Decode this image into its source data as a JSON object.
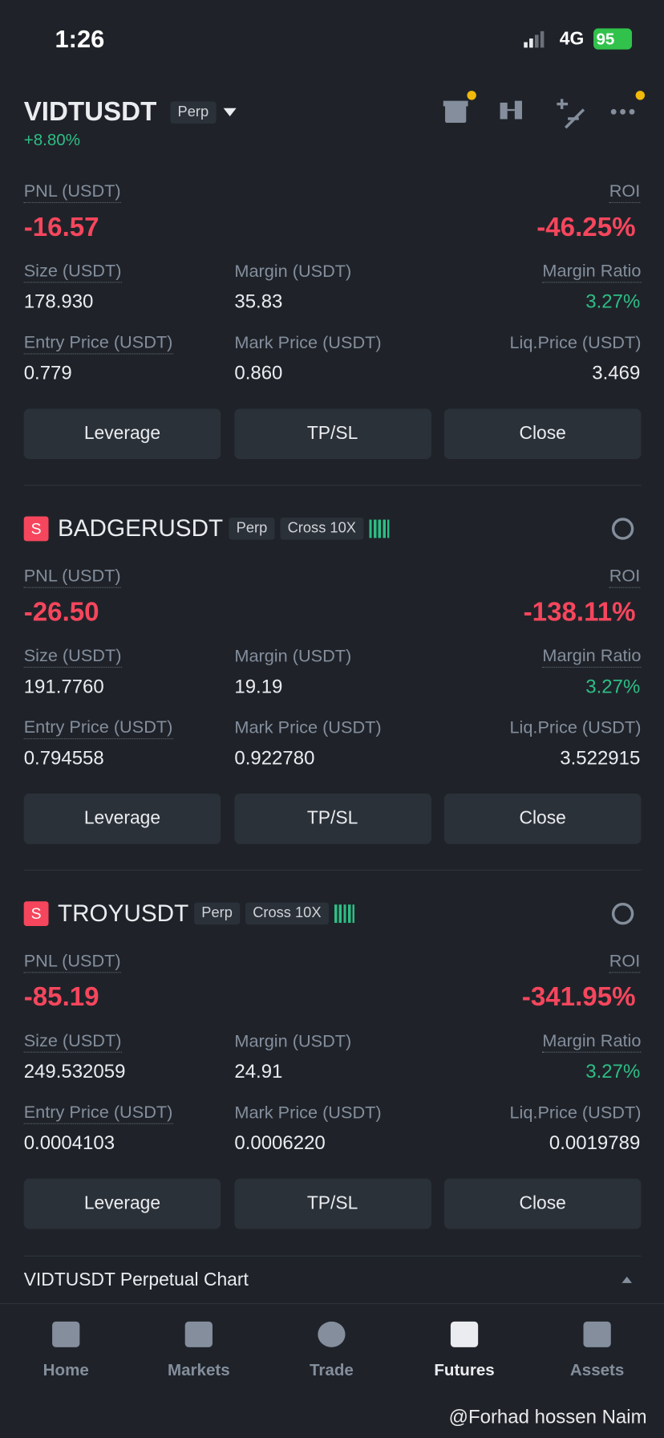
{
  "status": {
    "time": "1:26",
    "network": "4G",
    "battery": "95"
  },
  "header": {
    "symbol": "VIDTUSDT",
    "badge": "Perp",
    "change": "+8.80%"
  },
  "positions": [
    {
      "pnl_label": "PNL (USDT)",
      "pnl": "-16.57",
      "roi_label": "ROI",
      "roi": "-46.25%",
      "size_label": "Size (USDT)",
      "size": "178.930",
      "margin_label": "Margin (USDT)",
      "margin": "35.83",
      "ratio_label": "Margin Ratio",
      "ratio": "3.27%",
      "entry_label": "Entry Price (USDT)",
      "entry": "0.779",
      "mark_label": "Mark Price (USDT)",
      "mark": "0.860",
      "liq_label": "Liq.Price (USDT)",
      "liq": "3.469",
      "buttons": [
        "Leverage",
        "TP/SL",
        "Close"
      ]
    },
    {
      "side": "S",
      "symbol": "BADGERUSDT",
      "badges": [
        "Perp",
        "Cross 10X"
      ],
      "pnl_label": "PNL (USDT)",
      "pnl": "-26.50",
      "roi_label": "ROI",
      "roi": "-138.11%",
      "size_label": "Size (USDT)",
      "size": "191.7760",
      "margin_label": "Margin (USDT)",
      "margin": "19.19",
      "ratio_label": "Margin Ratio",
      "ratio": "3.27%",
      "entry_label": "Entry Price (USDT)",
      "entry": "0.794558",
      "mark_label": "Mark Price (USDT)",
      "mark": "0.922780",
      "liq_label": "Liq.Price (USDT)",
      "liq": "3.522915",
      "buttons": [
        "Leverage",
        "TP/SL",
        "Close"
      ]
    },
    {
      "side": "S",
      "symbol": "TROYUSDT",
      "badges": [
        "Perp",
        "Cross 10X"
      ],
      "pnl_label": "PNL (USDT)",
      "pnl": "-85.19",
      "roi_label": "ROI",
      "roi": "-341.95%",
      "size_label": "Size (USDT)",
      "size": "249.532059",
      "margin_label": "Margin (USDT)",
      "margin": "24.91",
      "ratio_label": "Margin Ratio",
      "ratio": "3.27%",
      "entry_label": "Entry Price (USDT)",
      "entry": "0.0004103",
      "mark_label": "Mark Price (USDT)",
      "mark": "0.0006220",
      "liq_label": "Liq.Price (USDT)",
      "liq": "0.0019789",
      "buttons": [
        "Leverage",
        "TP/SL",
        "Close"
      ]
    }
  ],
  "chart_bar": "VIDTUSDT Perpetual  Chart",
  "nav": {
    "items": [
      "Home",
      "Markets",
      "Trade",
      "Futures",
      "Assets"
    ],
    "active": 3
  },
  "watermark": "@Forhad hossen Naim"
}
